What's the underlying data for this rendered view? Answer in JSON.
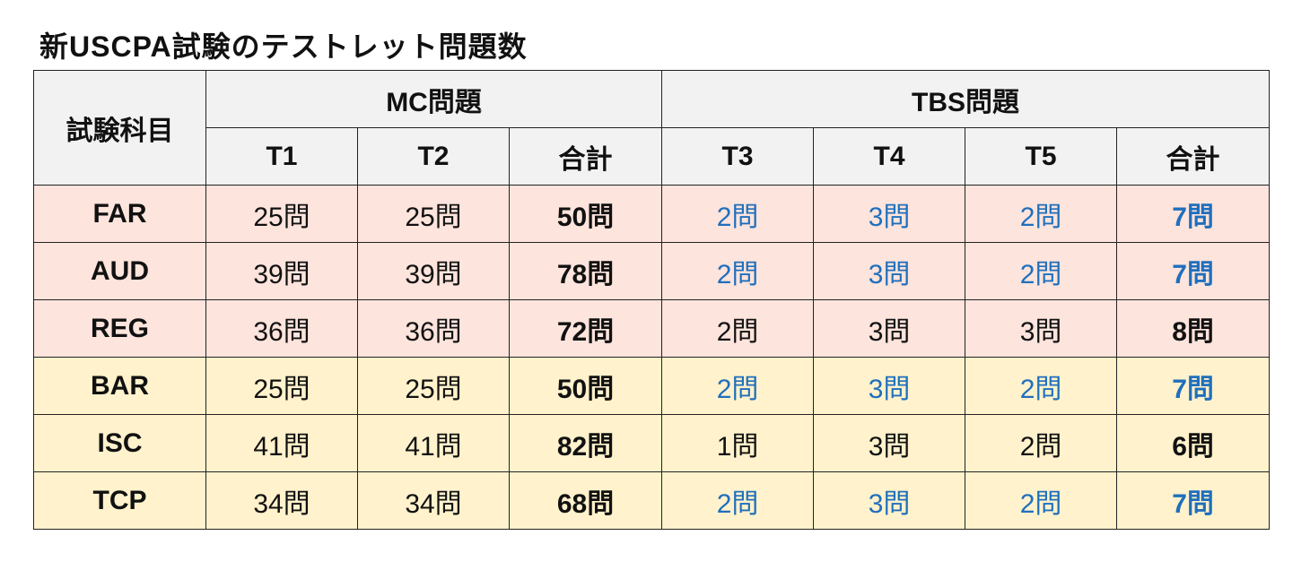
{
  "title": "新USCPA試験のテストレット問題数",
  "table": {
    "subject_header": "試験科目",
    "group_headers": [
      "MC問題",
      "TBS問題"
    ],
    "column_headers": [
      "T1",
      "T2",
      "合計",
      "T3",
      "T4",
      "T5",
      "合計"
    ],
    "rows": [
      {
        "subject": "FAR",
        "cells": [
          "25問",
          "25問",
          "50問",
          "2問",
          "3問",
          "2問",
          "7問"
        ],
        "tbs_blue": true
      },
      {
        "subject": "AUD",
        "cells": [
          "39問",
          "39問",
          "78問",
          "2問",
          "3問",
          "2問",
          "7問"
        ],
        "tbs_blue": true
      },
      {
        "subject": "REG",
        "cells": [
          "36問",
          "36問",
          "72問",
          "2問",
          "3問",
          "3問",
          "8問"
        ],
        "tbs_blue": false
      },
      {
        "subject": "BAR",
        "cells": [
          "25問",
          "25問",
          "50問",
          "2問",
          "3問",
          "2問",
          "7問"
        ],
        "tbs_blue": true
      },
      {
        "subject": "ISC",
        "cells": [
          "41問",
          "41問",
          "82問",
          "1問",
          "3問",
          "2問",
          "6問"
        ],
        "tbs_blue": false
      },
      {
        "subject": "TCP",
        "cells": [
          "34問",
          "34問",
          "68問",
          "2問",
          "3問",
          "2問",
          "7問"
        ],
        "tbs_blue": true
      }
    ]
  },
  "colors": {
    "header_bg": "#f2f2f2",
    "core_row_bg": "#fde4dc",
    "discipline_row_bg": "#fff2cc",
    "accent_blue": "#1f6fbd"
  }
}
